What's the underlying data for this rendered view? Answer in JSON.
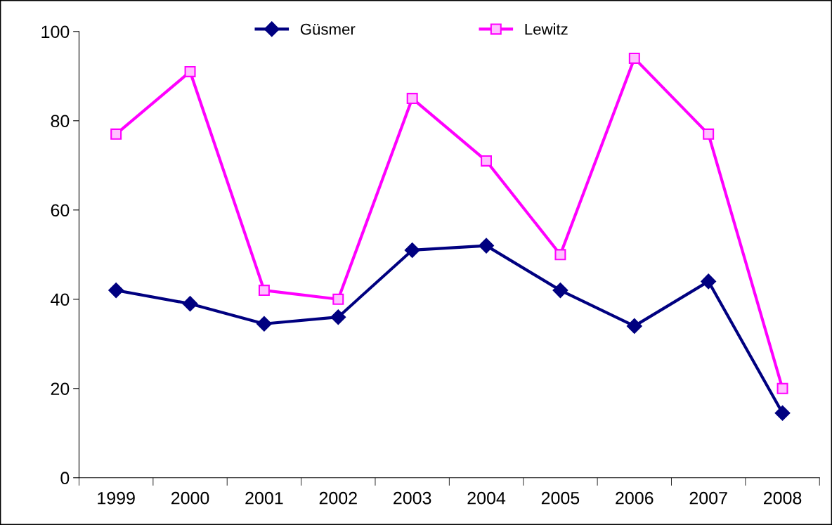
{
  "chart_data": {
    "type": "line",
    "categories": [
      "1999",
      "2000",
      "2001",
      "2002",
      "2003",
      "2004",
      "2005",
      "2006",
      "2007",
      "2008"
    ],
    "series": [
      {
        "name": "Güsmer",
        "color": "#000080",
        "marker": "diamond",
        "values": [
          42,
          39,
          34.5,
          36,
          51,
          52,
          42,
          34,
          44,
          14.5
        ]
      },
      {
        "name": "Lewitz",
        "color": "#ff00ff",
        "marker": "square",
        "values": [
          77,
          91,
          42,
          40,
          85,
          71,
          50,
          94,
          77,
          20
        ]
      }
    ],
    "ylim": [
      0,
      100
    ],
    "yticks": [
      0,
      20,
      40,
      60,
      80,
      100
    ],
    "grid": false,
    "legend": "top",
    "line_style": "solid"
  }
}
